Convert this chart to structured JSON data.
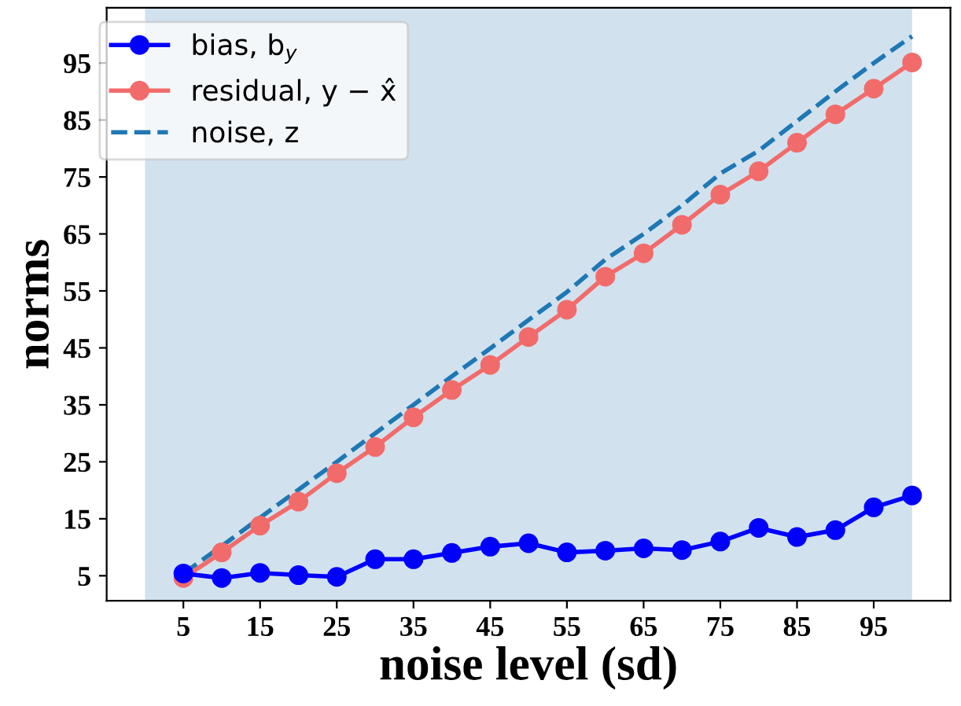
{
  "chart_data": {
    "type": "line",
    "xlabel": "noise level (sd)",
    "ylabel": "norms",
    "x": [
      5,
      10,
      15,
      20,
      25,
      30,
      35,
      40,
      45,
      50,
      55,
      60,
      65,
      70,
      75,
      80,
      85,
      90,
      95,
      100
    ],
    "series": [
      {
        "name": "bias, b$_{y}$",
        "color": "#0000ff",
        "marker": "circle",
        "line_style": "solid",
        "values": [
          5.4,
          4.6,
          5.5,
          5.1,
          4.8,
          7.9,
          7.9,
          9.0,
          10.1,
          10.7,
          9.1,
          9.4,
          9.8,
          9.5,
          11.0,
          13.4,
          11.8,
          13.0,
          17.0,
          19.1
        ]
      },
      {
        "name": "residual, y − x̂",
        "color": "#f26b6b",
        "marker": "circle",
        "line_style": "solid",
        "values": [
          4.6,
          9.1,
          13.8,
          18.0,
          23.0,
          27.6,
          32.8,
          37.6,
          42.0,
          46.9,
          51.7,
          57.5,
          61.6,
          66.6,
          71.9,
          76.0,
          81.0,
          86.0,
          90.5,
          95.1
        ]
      },
      {
        "name": "noise, z",
        "color": "#1f77b4",
        "marker": "none",
        "line_style": "dashed",
        "values": [
          5.4,
          10.2,
          15.2,
          20.1,
          25.0,
          30.0,
          35.0,
          40.0,
          44.9,
          49.9,
          54.8,
          60.5,
          65.0,
          70.0,
          75.6,
          79.6,
          84.8,
          90.0,
          95.0,
          99.7
        ]
      }
    ],
    "bands": [
      {
        "axis": "x",
        "from": 0,
        "to": 100,
        "color": "#d1e2ee"
      }
    ],
    "xlim": [
      -5,
      105
    ],
    "xticks": [
      5,
      15,
      25,
      35,
      45,
      55,
      65,
      75,
      85,
      95
    ],
    "ylim": [
      0.6,
      104.7
    ],
    "yticks": [
      5,
      15,
      25,
      35,
      45,
      55,
      65,
      75,
      85,
      95
    ],
    "grid": false,
    "legend": "top left"
  }
}
